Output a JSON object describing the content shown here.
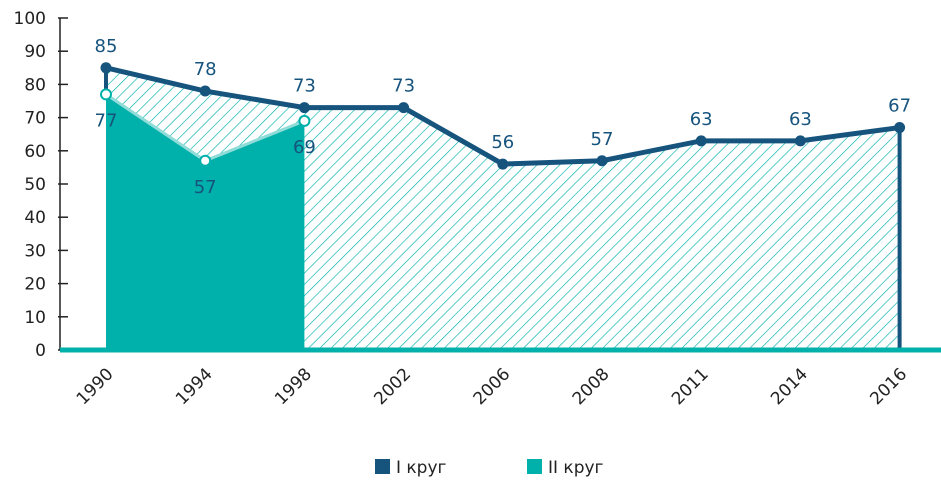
{
  "chart_data": {
    "type": "area",
    "categories": [
      "1990",
      "1994",
      "1998",
      "2002",
      "2006",
      "2008",
      "2011",
      "2014",
      "2016"
    ],
    "series": [
      {
        "name": "I круг",
        "color": "#16547e",
        "values": [
          85,
          78,
          73,
          73,
          56,
          57,
          63,
          63,
          67
        ]
      },
      {
        "name": "II круг",
        "color": "#00b0aa",
        "values": [
          77,
          57,
          69,
          null,
          null,
          null,
          null,
          null,
          null
        ]
      }
    ],
    "ylim": [
      0,
      100
    ],
    "yticks": [
      0,
      10,
      20,
      30,
      40,
      50,
      60,
      70,
      80,
      90,
      100
    ],
    "grid": false,
    "legend": "bottom"
  }
}
